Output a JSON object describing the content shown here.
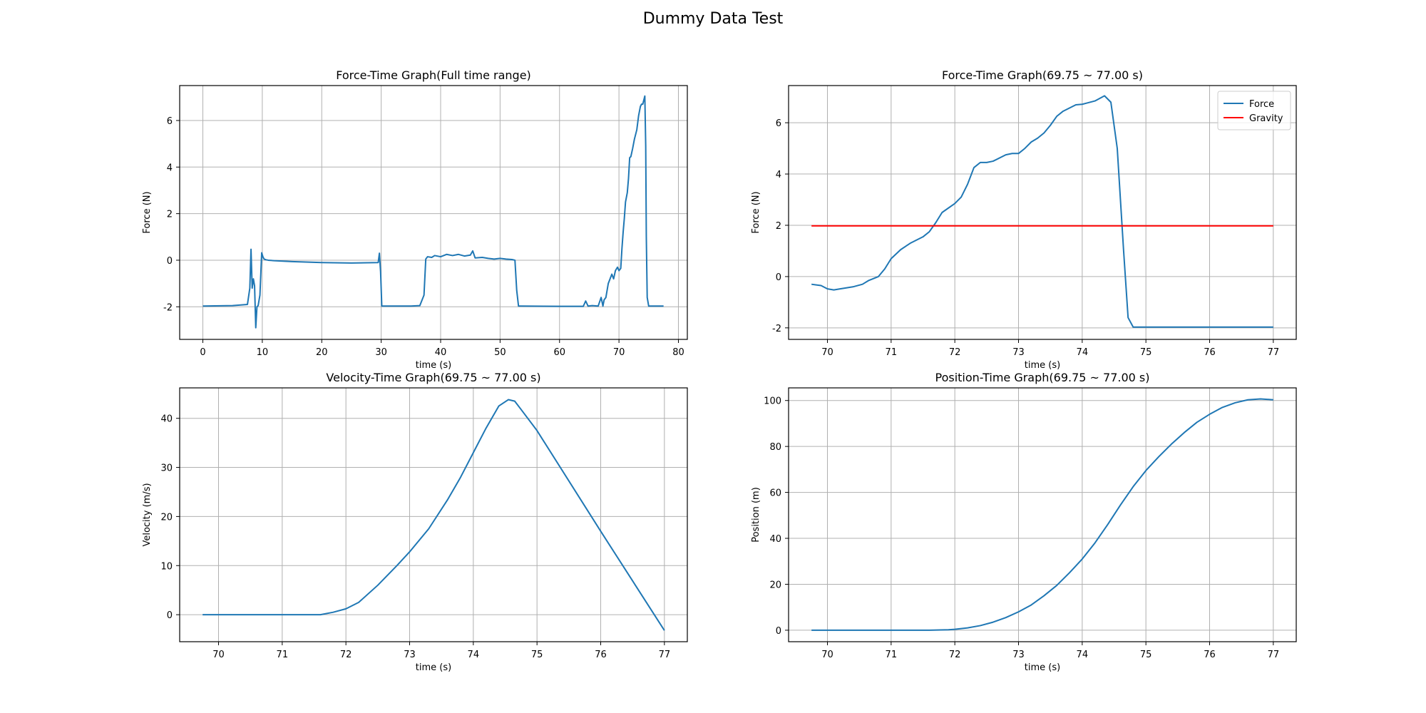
{
  "suptitle": "Dummy Data Test",
  "colors": {
    "line": "#1f77b4",
    "gravity": "#ff0000",
    "grid": "#b0b0b0"
  },
  "chart_data": [
    {
      "type": "line",
      "title": "Force-Time Graph(Full time range)",
      "xlabel": "time (s)",
      "ylabel": "Force (N)",
      "xlim": [
        -3.9,
        81.5
      ],
      "ylim": [
        -3.4,
        7.5
      ],
      "xticks": [
        0,
        10,
        20,
        30,
        40,
        50,
        60,
        70,
        80
      ],
      "yticks": [
        -2,
        0,
        2,
        4,
        6
      ],
      "grid": true,
      "legend": null,
      "series": [
        {
          "color": "#1f77b4",
          "x": [
            0,
            5,
            7.5,
            7.9,
            8.1,
            8.3,
            8.5,
            8.7,
            8.9,
            9.1,
            9.3,
            9.6,
            9.9,
            10.1,
            10.3,
            10.6,
            11,
            12,
            15,
            20,
            25,
            29.5,
            29.7,
            29.9,
            30.1,
            30.3,
            30.6,
            31,
            35,
            36.5,
            37.2,
            37.5,
            37.8,
            38.5,
            39,
            40,
            41,
            42,
            43,
            44,
            45,
            45.4,
            45.8,
            47,
            48,
            49,
            50,
            51,
            52,
            52.5,
            52.8,
            53.1,
            53.5,
            60,
            64,
            64.4,
            64.8,
            65.5,
            66.5,
            67,
            67.3,
            67.5,
            67.8,
            68.2,
            68.5,
            68.8,
            69.1,
            69.4,
            69.75,
            70,
            70.3,
            70.5,
            70.7,
            70.9,
            71.1,
            71.4,
            71.6,
            71.8,
            72.0,
            72.3,
            72.6,
            73.0,
            73.3,
            73.6,
            73.8,
            74.0,
            74.2,
            74.35,
            74.5,
            74.6,
            74.75,
            75,
            77.5
          ],
          "y": [
            -1.97,
            -1.95,
            -1.9,
            -1.2,
            0.47,
            -1.2,
            -0.8,
            -1.1,
            -2.9,
            -2.0,
            -1.95,
            -1.5,
            0.32,
            0.15,
            0.05,
            0.02,
            0.0,
            -0.02,
            -0.06,
            -0.1,
            -0.12,
            -0.1,
            0.3,
            -0.5,
            -1.97,
            -1.97,
            -1.97,
            -1.97,
            -1.97,
            -1.95,
            -1.5,
            0.05,
            0.15,
            0.12,
            0.2,
            0.15,
            0.25,
            0.2,
            0.25,
            0.18,
            0.22,
            0.4,
            0.1,
            0.12,
            0.08,
            0.05,
            0.08,
            0.05,
            0.03,
            0.0,
            -1.3,
            -1.97,
            -1.97,
            -1.98,
            -1.98,
            -1.75,
            -1.97,
            -1.95,
            -1.97,
            -1.6,
            -1.97,
            -1.7,
            -1.6,
            -1.0,
            -0.8,
            -0.6,
            -0.8,
            -0.45,
            -0.3,
            -0.45,
            -0.35,
            0.5,
            1.2,
            1.8,
            2.5,
            2.9,
            3.5,
            4.4,
            4.45,
            4.8,
            5.2,
            5.6,
            6.2,
            6.6,
            6.7,
            6.7,
            6.9,
            7.05,
            4.9,
            1.0,
            -1.6,
            -1.97,
            -1.97
          ]
        }
      ]
    },
    {
      "type": "line",
      "title": "Force-Time Graph(69.75 ~ 77.00 s)",
      "xlabel": "time (s)",
      "ylabel": "Force (N)",
      "xlim": [
        69.39,
        77.36
      ],
      "ylim": [
        -2.45,
        7.45
      ],
      "xticks": [
        70,
        71,
        72,
        73,
        74,
        75,
        76,
        77
      ],
      "yticks": [
        -2,
        0,
        2,
        4,
        6
      ],
      "grid": true,
      "legend": "upper right",
      "series": [
        {
          "name": "Force",
          "color": "#1f77b4",
          "x": [
            69.75,
            69.9,
            70.0,
            70.1,
            70.2,
            70.4,
            70.55,
            70.65,
            70.8,
            70.9,
            71.0,
            71.15,
            71.3,
            71.5,
            71.6,
            71.7,
            71.8,
            72.0,
            72.1,
            72.2,
            72.3,
            72.4,
            72.5,
            72.6,
            72.8,
            72.9,
            73.0,
            73.1,
            73.2,
            73.3,
            73.4,
            73.5,
            73.6,
            73.7,
            73.9,
            74.0,
            74.2,
            74.35,
            74.45,
            74.55,
            74.65,
            74.72,
            74.8,
            75.0,
            77.0
          ],
          "y": [
            -0.3,
            -0.35,
            -0.48,
            -0.52,
            -0.48,
            -0.4,
            -0.3,
            -0.15,
            0.0,
            0.3,
            0.7,
            1.05,
            1.3,
            1.55,
            1.75,
            2.1,
            2.5,
            2.85,
            3.1,
            3.6,
            4.25,
            4.45,
            4.45,
            4.5,
            4.75,
            4.8,
            4.8,
            5.0,
            5.25,
            5.4,
            5.6,
            5.9,
            6.25,
            6.45,
            6.7,
            6.72,
            6.85,
            7.05,
            6.8,
            5.0,
            1.0,
            -1.6,
            -1.97,
            -1.97,
            -1.97
          ]
        },
        {
          "name": "Gravity",
          "color": "#ff0000",
          "x": [
            69.75,
            77.0
          ],
          "y": [
            1.98,
            1.98
          ]
        }
      ]
    },
    {
      "type": "line",
      "title": "Velocity-Time Graph(69.75 ~ 77.00 s)",
      "xlabel": "time (s)",
      "ylabel": "Velocity (m/s)",
      "xlim": [
        69.39,
        77.36
      ],
      "ylim": [
        -5.5,
        46.2
      ],
      "xticks": [
        70,
        71,
        72,
        73,
        74,
        75,
        76,
        77
      ],
      "yticks": [
        0,
        10,
        20,
        30,
        40
      ],
      "grid": true,
      "legend": null,
      "series": [
        {
          "color": "#1f77b4",
          "x": [
            69.75,
            71.0,
            71.6,
            71.8,
            72.0,
            72.2,
            72.5,
            72.8,
            73.0,
            73.3,
            73.6,
            73.8,
            74.0,
            74.2,
            74.4,
            74.55,
            74.65,
            74.75,
            75.0,
            76.0,
            77.0
          ],
          "y": [
            0,
            0,
            0,
            0.5,
            1.2,
            2.5,
            6.0,
            10.0,
            12.8,
            17.5,
            23.5,
            28.0,
            33.0,
            38.0,
            42.5,
            43.8,
            43.5,
            41.8,
            37.5,
            17.0,
            -3.2
          ]
        }
      ]
    },
    {
      "type": "line",
      "title": "Position-Time Graph(69.75 ~ 77.00 s)",
      "xlabel": "time (s)",
      "ylabel": "Position (m)",
      "xlim": [
        69.39,
        77.36
      ],
      "ylim": [
        -5.0,
        105.5
      ],
      "xticks": [
        70,
        71,
        72,
        73,
        74,
        75,
        76,
        77
      ],
      "yticks": [
        0,
        20,
        40,
        60,
        80,
        100
      ],
      "grid": true,
      "legend": null,
      "series": [
        {
          "color": "#1f77b4",
          "x": [
            69.75,
            71.6,
            71.9,
            72.0,
            72.2,
            72.4,
            72.6,
            72.8,
            73.0,
            73.2,
            73.4,
            73.6,
            73.8,
            74.0,
            74.2,
            74.4,
            74.6,
            74.8,
            75.0,
            75.2,
            75.4,
            75.6,
            75.8,
            76.0,
            76.2,
            76.4,
            76.6,
            76.8,
            77.0
          ],
          "y": [
            0,
            0,
            0.2,
            0.4,
            1.0,
            2.0,
            3.5,
            5.5,
            8.0,
            11.0,
            15.0,
            19.5,
            25.0,
            31.0,
            38.0,
            46.0,
            54.5,
            62.5,
            69.5,
            75.5,
            81.0,
            86.0,
            90.5,
            94.0,
            97.0,
            99.0,
            100.3,
            100.7,
            100.3
          ]
        }
      ]
    }
  ]
}
